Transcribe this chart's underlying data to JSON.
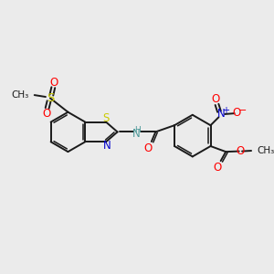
{
  "bg_color": "#ebebeb",
  "bond_color": "#1a1a1a",
  "S_color": "#cccc00",
  "O_color": "#ff0000",
  "N_color": "#0000cc",
  "NH_color": "#4d9999",
  "figsize": [
    3.0,
    3.0
  ],
  "dpi": 100,
  "xlim": [
    0,
    10
  ],
  "ylim": [
    0,
    10
  ]
}
